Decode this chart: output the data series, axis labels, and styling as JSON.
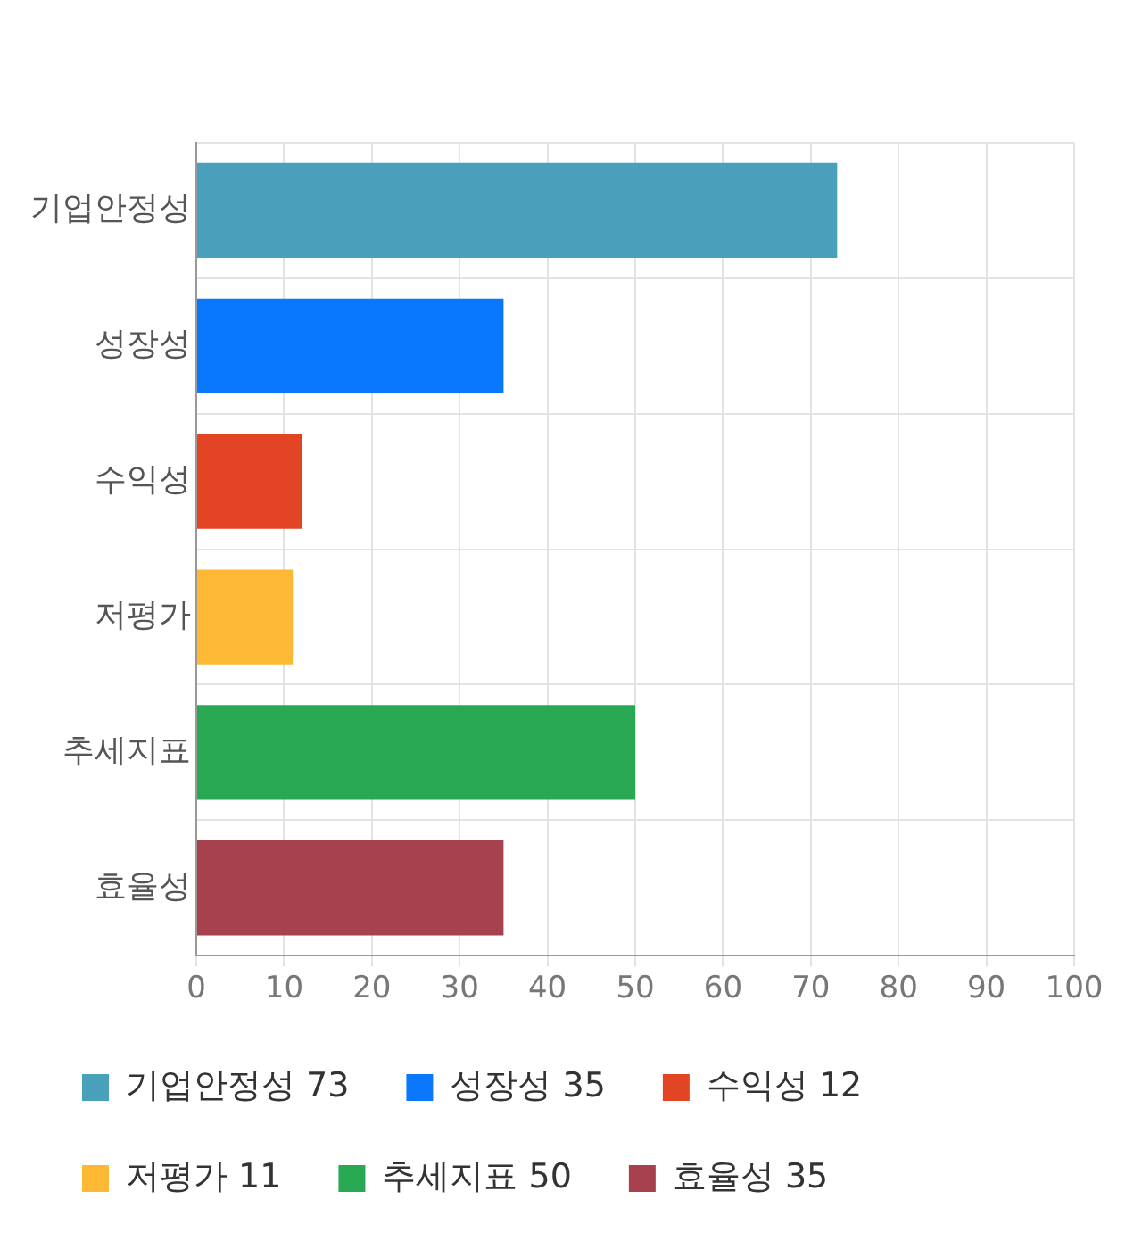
{
  "chart_data": {
    "type": "bar",
    "orientation": "horizontal",
    "categories": [
      "기업안정성",
      "성장성",
      "수익성",
      "저평가",
      "추세지표",
      "효율성"
    ],
    "series": [
      {
        "name": "기업안정성 73",
        "color": "#4a9fba",
        "values": [
          73,
          null,
          null,
          null,
          null,
          null
        ]
      },
      {
        "name": "성장성 35",
        "color": "#0a77ff",
        "values": [
          null,
          35,
          null,
          null,
          null,
          null
        ]
      },
      {
        "name": "수익성 12",
        "color": "#e34524",
        "values": [
          null,
          null,
          12,
          null,
          null,
          null
        ]
      },
      {
        "name": "저평가 11",
        "color": "#fdb933",
        "values": [
          null,
          null,
          null,
          11,
          null,
          null
        ]
      },
      {
        "name": "추세지표 50",
        "color": "#28a853",
        "values": [
          null,
          null,
          null,
          null,
          50,
          null
        ]
      },
      {
        "name": "효율성 35",
        "color": "#a8414e",
        "values": [
          null,
          null,
          null,
          null,
          null,
          35
        ]
      }
    ],
    "xlim": [
      0,
      100
    ],
    "xticks": [
      0,
      10,
      20,
      30,
      40,
      50,
      60,
      70,
      80,
      90,
      100
    ],
    "grid": true,
    "legend": "bottom"
  }
}
